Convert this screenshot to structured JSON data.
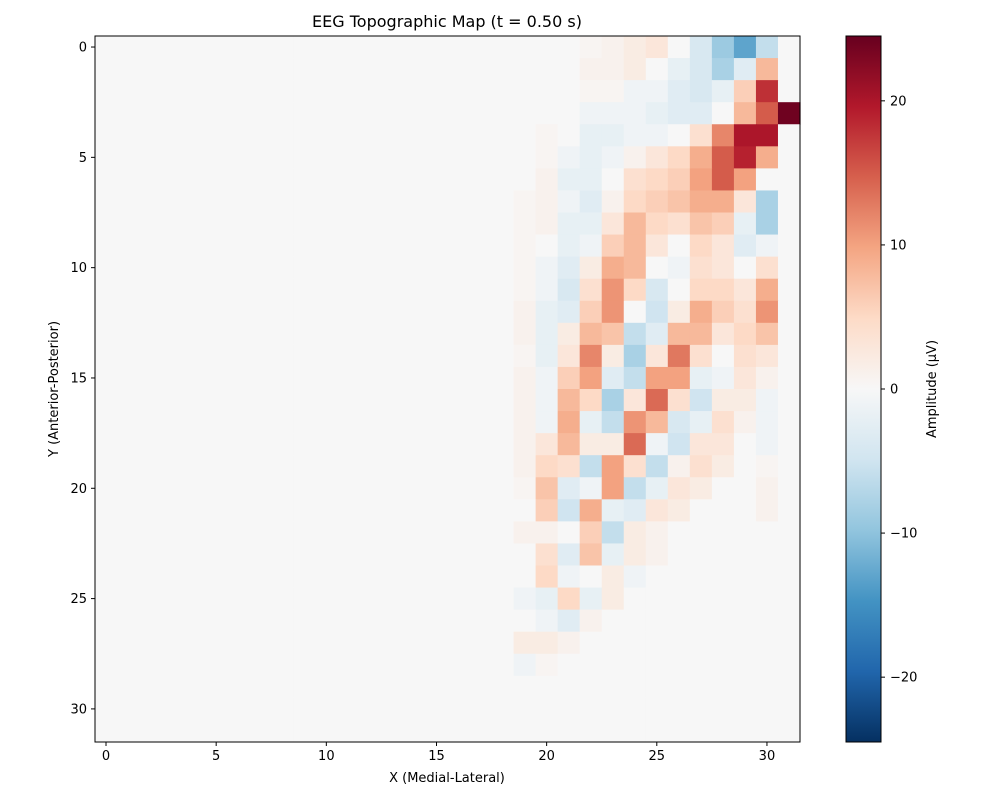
{
  "chart_data": {
    "type": "heatmap",
    "title": "EEG Topographic Map (t = 0.50 s)",
    "xlabel": "X (Medial-Lateral)",
    "ylabel": "Y (Anterior-Posterior)",
    "colorbar_label": "Amplitude (μV)",
    "colormap": "RdBu_r",
    "vmin": -24.5,
    "vmax": 24.5,
    "grid_size": [
      32,
      32
    ],
    "x_ticks": [
      0,
      5,
      10,
      15,
      20,
      25,
      30
    ],
    "y_ticks": [
      0,
      5,
      10,
      15,
      20,
      25,
      30
    ],
    "colorbar_ticks": [
      -20,
      -10,
      0,
      10,
      20
    ],
    "baseline": 0,
    "nonzero_rows": [
      {
        "row": 0,
        "start": 22,
        "values": [
          0.5,
          1,
          2,
          3,
          0,
          -4,
          -9,
          -13,
          -6
        ]
      },
      {
        "row": 1,
        "start": 22,
        "values": [
          1,
          1,
          2,
          0,
          -2,
          -4,
          -8,
          -3,
          8
        ]
      },
      {
        "row": 2,
        "start": 21,
        "values": [
          0,
          0.5,
          0.5,
          -1,
          -1,
          -3,
          -4,
          -2,
          6,
          18
        ]
      },
      {
        "row": 3,
        "start": 21,
        "values": [
          0,
          -1,
          -1,
          -1,
          -2,
          -3,
          -3,
          0,
          8,
          15,
          24
        ]
      },
      {
        "row": 4,
        "start": 20,
        "values": [
          0.5,
          0,
          -2,
          -2,
          -1,
          -1,
          0,
          4,
          12,
          20,
          20
        ]
      },
      {
        "row": 5,
        "start": 20,
        "values": [
          0.5,
          -1,
          -2,
          -1,
          1,
          3,
          5,
          9,
          15,
          19,
          9
        ]
      },
      {
        "row": 6,
        "start": 20,
        "values": [
          1,
          -2,
          -2,
          0,
          4,
          5,
          6,
          10,
          15,
          10,
          0
        ]
      },
      {
        "row": 7,
        "start": 19,
        "values": [
          0.5,
          1,
          -1,
          -3,
          1,
          5,
          6,
          7,
          9,
          9,
          3,
          -8
        ]
      },
      {
        "row": 8,
        "start": 19,
        "values": [
          0.5,
          1,
          -2,
          -2,
          3,
          8,
          5,
          4,
          7,
          6,
          -2,
          -8
        ]
      },
      {
        "row": 9,
        "start": 19,
        "values": [
          0.5,
          0,
          -2,
          -1,
          6,
          8,
          3,
          0,
          5,
          3,
          -3,
          -1
        ]
      },
      {
        "row": 10,
        "start": 19,
        "values": [
          0.5,
          -1,
          -3,
          2,
          9,
          8,
          0,
          -1,
          4,
          3,
          0,
          4
        ]
      },
      {
        "row": 11,
        "start": 19,
        "values": [
          0.5,
          -1,
          -4,
          4,
          11,
          5,
          -4,
          0,
          5,
          5,
          3,
          9
        ]
      },
      {
        "row": 12,
        "start": 19,
        "values": [
          1,
          -2,
          -3,
          6,
          11,
          0,
          -5,
          2,
          9,
          6,
          4,
          11
        ]
      },
      {
        "row": 13,
        "start": 19,
        "values": [
          1,
          -2,
          2,
          8,
          7,
          -6,
          -3,
          8,
          8,
          3,
          5,
          7
        ]
      },
      {
        "row": 14,
        "start": 19,
        "values": [
          0.5,
          -2,
          3,
          12,
          2,
          -8,
          3,
          13,
          4,
          0,
          4,
          3
        ]
      },
      {
        "row": 15,
        "start": 19,
        "values": [
          1,
          -1,
          6,
          10,
          -3,
          -6,
          10,
          10,
          -2,
          -1,
          3,
          1
        ]
      },
      {
        "row": 16,
        "start": 19,
        "values": [
          1,
          -1,
          8,
          5,
          -8,
          3,
          14,
          4,
          -5,
          2,
          2,
          -1
        ]
      },
      {
        "row": 17,
        "start": 19,
        "values": [
          1,
          -1,
          9,
          -2,
          -6,
          11,
          8,
          -4,
          -2,
          4,
          1,
          -1
        ]
      },
      {
        "row": 18,
        "start": 19,
        "values": [
          1,
          3,
          8,
          2,
          2,
          14,
          -1,
          -5,
          3,
          3,
          0,
          -1
        ]
      },
      {
        "row": 19,
        "start": 19,
        "values": [
          1,
          5,
          4,
          -6,
          10,
          4,
          -6,
          1,
          4,
          2,
          0,
          0.5
        ]
      },
      {
        "row": 20,
        "start": 19,
        "values": [
          0.5,
          7,
          -3,
          -1,
          10,
          -6,
          -2,
          3,
          2,
          0,
          0,
          1
        ]
      },
      {
        "row": 21,
        "start": 19,
        "values": [
          0,
          6,
          -5,
          9,
          -2,
          -3,
          3,
          2,
          0,
          0,
          0,
          1
        ]
      },
      {
        "row": 22,
        "start": 19,
        "values": [
          1,
          1,
          0,
          6,
          -6,
          2,
          1,
          0,
          0,
          0,
          0,
          0
        ]
      },
      {
        "row": 23,
        "start": 19,
        "values": [
          0,
          4,
          -3,
          7,
          -2,
          2,
          1
        ]
      },
      {
        "row": 24,
        "start": 19,
        "values": [
          0,
          5,
          -1,
          0,
          2,
          -1
        ]
      },
      {
        "row": 25,
        "start": 19,
        "values": [
          -1,
          -2,
          5,
          -2,
          2
        ]
      },
      {
        "row": 26,
        "start": 19,
        "values": [
          0,
          -1,
          -3,
          1
        ]
      },
      {
        "row": 27,
        "start": 19,
        "values": [
          2,
          2,
          1
        ]
      },
      {
        "row": 28,
        "start": 19,
        "values": [
          -1,
          0.5
        ]
      }
    ]
  }
}
